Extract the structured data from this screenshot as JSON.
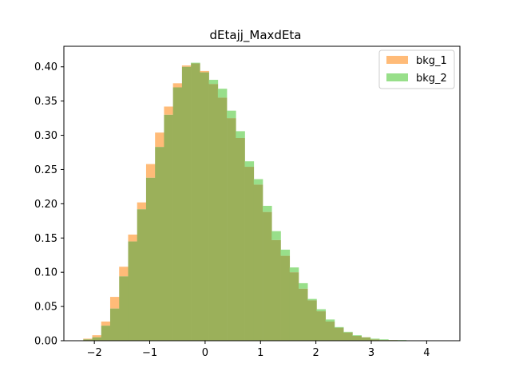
{
  "chart_data": {
    "type": "histogram",
    "title": "dEtajj_MaxdEta",
    "xlabel": "",
    "ylabel": "",
    "xlim": [
      -2.55,
      4.6
    ],
    "ylim": [
      0,
      0.43
    ],
    "xticks": [
      -2,
      -1,
      0,
      1,
      2,
      3,
      4
    ],
    "xtick_labels": [
      "−2",
      "−1",
      "0",
      "1",
      "2",
      "3",
      "4"
    ],
    "yticks": [
      0.0,
      0.05,
      0.1,
      0.15,
      0.2,
      0.25,
      0.3,
      0.35,
      0.4
    ],
    "ytick_labels": [
      "0.00",
      "0.05",
      "0.10",
      "0.15",
      "0.20",
      "0.25",
      "0.30",
      "0.35",
      "0.40"
    ],
    "grid": false,
    "legend_position": "top-right",
    "bins": {
      "start": -2.2,
      "width": 0.162,
      "count": 41
    },
    "series": [
      {
        "name": "bkg_1",
        "color": "#ffbb78",
        "values": [
          0.003,
          0.008,
          0.028,
          0.064,
          0.108,
          0.155,
          0.202,
          0.258,
          0.304,
          0.342,
          0.376,
          0.402,
          0.405,
          0.394,
          0.375,
          0.355,
          0.325,
          0.296,
          0.254,
          0.228,
          0.188,
          0.147,
          0.124,
          0.1,
          0.076,
          0.059,
          0.043,
          0.028,
          0.019,
          0.012,
          0.007,
          0.005,
          0.002,
          0.001,
          0.001,
          0.0,
          0.0,
          0.0,
          0.0,
          0.0,
          0.0
        ]
      },
      {
        "name": "bkg_2",
        "color": "#98df8a",
        "values": [
          0.002,
          0.005,
          0.022,
          0.047,
          0.094,
          0.145,
          0.192,
          0.238,
          0.283,
          0.33,
          0.37,
          0.4,
          0.406,
          0.392,
          0.381,
          0.368,
          0.336,
          0.306,
          0.262,
          0.236,
          0.197,
          0.16,
          0.133,
          0.107,
          0.084,
          0.061,
          0.046,
          0.031,
          0.02,
          0.013,
          0.008,
          0.005,
          0.003,
          0.002,
          0.001,
          0.001,
          0.0,
          0.0,
          0.0,
          0.0,
          0.0
        ]
      }
    ],
    "overlap_color": "#9bb05a"
  }
}
